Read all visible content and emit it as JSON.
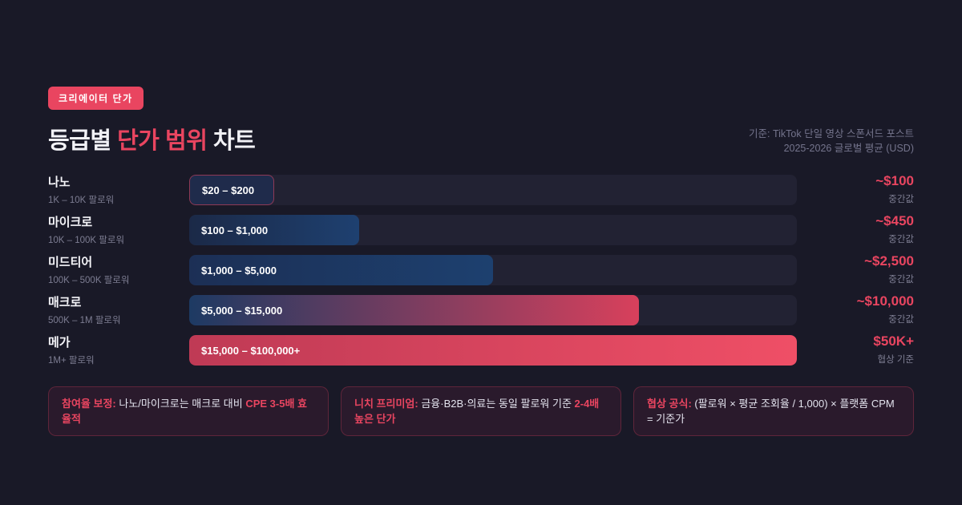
{
  "page": {
    "background": "#191927",
    "accent": "#e94560",
    "track_color": "#222233"
  },
  "header": {
    "badge": "크리에이터 단가",
    "title": {
      "prefix": "등급별 ",
      "accent": "단가 범위",
      "suffix": " 차트"
    },
    "meta_line1": "기준: TikTok 단일 영상 스폰서드 포스트",
    "meta_line2": "2025-2026 글로벌 평균 (USD)"
  },
  "chart_data": {
    "type": "bar",
    "orientation": "horizontal",
    "unit": "USD",
    "title": "등급별 단가 범위 차트",
    "categories": [
      "나노",
      "마이크로",
      "미드티어",
      "매크로",
      "메가"
    ],
    "rows": [
      {
        "tier": "나노",
        "followers": "1K – 10K 팔로워",
        "range_label": "$20 – $200",
        "range_usd": [
          20,
          200
        ],
        "median_label": "~$100",
        "median_usd": 100,
        "median_caption": "중간값",
        "width_pct": 14,
        "bar": {
          "from": "#1f2b4b",
          "to": "#1f2b4b",
          "border": "1px solid rgba(233,69,96,0.55)"
        }
      },
      {
        "tier": "마이크로",
        "followers": "10K – 100K 팔로워",
        "range_label": "$100 – $1,000",
        "range_usd": [
          100,
          1000
        ],
        "median_label": "~$450",
        "median_usd": 450,
        "median_caption": "중간값",
        "width_pct": 28,
        "bar": {
          "from": "#1b2947",
          "to": "#1e4070",
          "border": "none"
        }
      },
      {
        "tier": "미드티어",
        "followers": "100K – 500K 팔로워",
        "range_label": "$1,000 – $5,000",
        "range_usd": [
          1000,
          5000
        ],
        "median_label": "~$2,500",
        "median_usd": 2500,
        "median_caption": "중간값",
        "width_pct": 50,
        "bar": {
          "from": "#1c2f55",
          "to": "#1d406f",
          "border": "none"
        }
      },
      {
        "tier": "매크로",
        "followers": "500K – 1M 팔로워",
        "range_label": "$5,000 – $15,000",
        "range_usd": [
          5000,
          15000
        ],
        "median_label": "~$10,000",
        "median_usd": 10000,
        "median_caption": "중간값",
        "width_pct": 74,
        "bar": {
          "from": "#1d3a63",
          "to": "#d8405c",
          "border": "none"
        }
      },
      {
        "tier": "메가",
        "followers": "1M+ 팔로워",
        "range_label": "$15,000 – $100,000+",
        "range_usd": [
          15000,
          100000
        ],
        "median_label": "$50K+",
        "median_usd": 50000,
        "median_caption": "협상 기준",
        "width_pct": 100,
        "bar": {
          "from": "#bf3a55",
          "to": "#ef4f66",
          "border": "none"
        }
      }
    ]
  },
  "notes": [
    {
      "segments": [
        {
          "text": "참여율 보정:",
          "em": true
        },
        {
          "text": " 나노/마이크로는 매크로 대비 ",
          "em": false
        },
        {
          "text": "CPE 3-5배 효율적",
          "em": true
        }
      ]
    },
    {
      "segments": [
        {
          "text": "니치 프리미엄:",
          "em": true
        },
        {
          "text": " 금융·B2B·의료는 동일 팔로워 기준 ",
          "em": false
        },
        {
          "text": "2-4배 높은 단가",
          "em": true
        }
      ]
    },
    {
      "segments": [
        {
          "text": "협상 공식:",
          "em": true
        },
        {
          "text": " (팔로워 × 평균 조회율 / 1,000) × 플랫폼 CPM = 기준가",
          "em": false
        }
      ]
    }
  ]
}
